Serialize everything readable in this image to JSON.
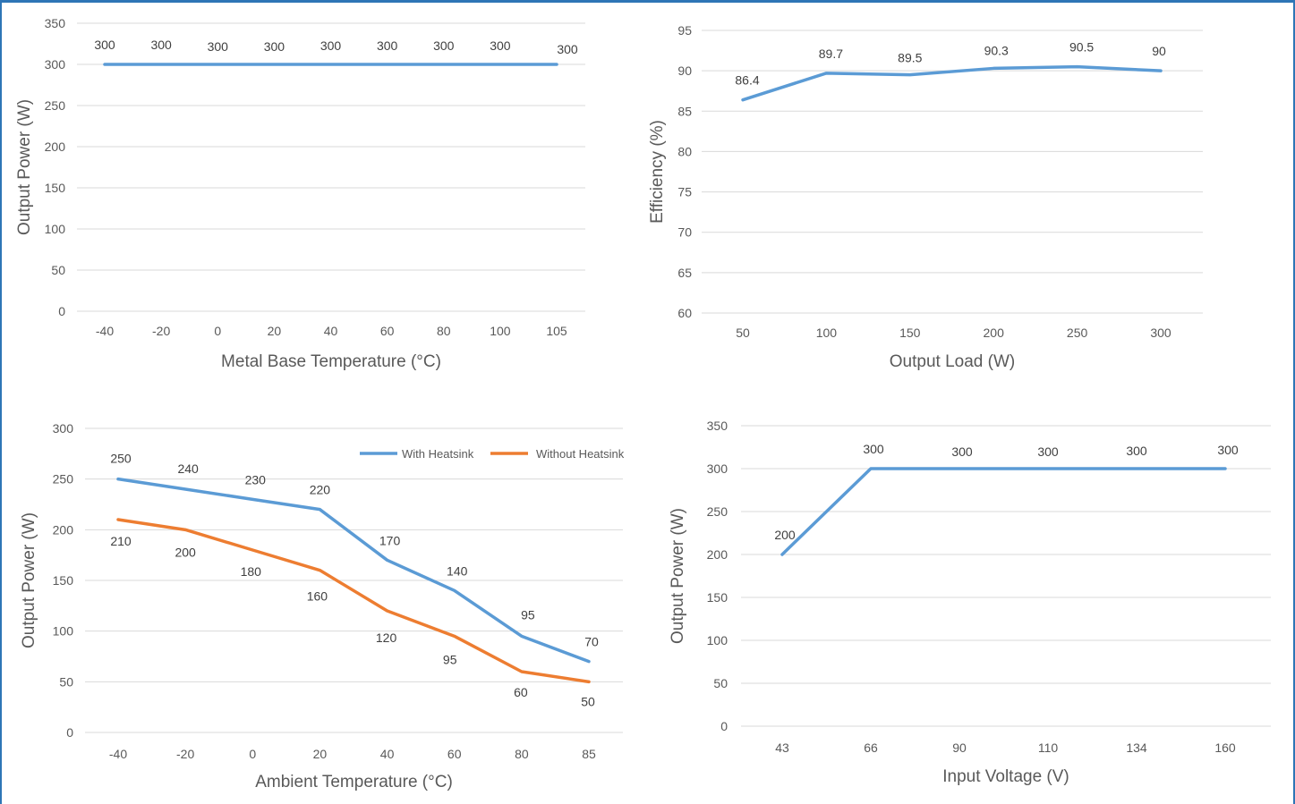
{
  "colors": {
    "blue": "#5b9bd5",
    "orange": "#ed7d31",
    "grid": "#d9d9d9",
    "frame": "#2e75b6"
  },
  "chart_data": [
    {
      "type": "line",
      "title": "",
      "xlabel": "Metal Base Temperature (°C)",
      "ylabel": "Output Power (W)",
      "categories": [
        "-40",
        "-20",
        "0",
        "20",
        "40",
        "60",
        "80",
        "100",
        "105"
      ],
      "ylim": [
        0,
        350
      ],
      "yticks": [
        0,
        50,
        100,
        150,
        200,
        250,
        300,
        350
      ],
      "grid": true,
      "legend": "none",
      "series": [
        {
          "values": [
            300,
            300,
            300,
            300,
            300,
            300,
            300,
            300,
            300
          ],
          "color": "#5b9bd5"
        }
      ]
    },
    {
      "type": "line",
      "title": "",
      "xlabel": "Output Load (W)",
      "ylabel": "Efficiency (%)",
      "categories": [
        "50",
        "100",
        "150",
        "200",
        "250",
        "300"
      ],
      "ylim": [
        60,
        95
      ],
      "yticks": [
        60,
        65,
        70,
        75,
        80,
        85,
        90,
        95
      ],
      "grid": true,
      "legend": "none",
      "series": [
        {
          "values": [
            86.4,
            89.7,
            89.5,
            90.3,
            90.5,
            90
          ],
          "color": "#5b9bd5"
        }
      ]
    },
    {
      "type": "line",
      "title": "",
      "xlabel": "Ambient Temperature (°C)",
      "ylabel": "Output Power (W)",
      "categories": [
        "-40",
        "-20",
        "0",
        "20",
        "40",
        "60",
        "80",
        "85"
      ],
      "ylim": [
        0,
        300
      ],
      "yticks": [
        0,
        50,
        100,
        150,
        200,
        250,
        300
      ],
      "grid": true,
      "legend": "top-right",
      "series": [
        {
          "name": "With Heatsink",
          "values": [
            250,
            240,
            230,
            220,
            170,
            140,
            95,
            70
          ],
          "color": "#5b9bd5"
        },
        {
          "name": "Without Heatsink",
          "values": [
            210,
            200,
            180,
            160,
            120,
            95,
            60,
            50
          ],
          "color": "#ed7d31"
        }
      ]
    },
    {
      "type": "line",
      "title": "",
      "xlabel": "Input Voltage (V)",
      "ylabel": "Output Power (W)",
      "categories": [
        "43",
        "66",
        "90",
        "110",
        "134",
        "160"
      ],
      "ylim": [
        0,
        350
      ],
      "yticks": [
        0,
        50,
        100,
        150,
        200,
        250,
        300,
        350
      ],
      "grid": true,
      "legend": "none",
      "series": [
        {
          "values": [
            200,
            300,
            300,
            300,
            300,
            300
          ],
          "color": "#5b9bd5"
        }
      ]
    }
  ]
}
